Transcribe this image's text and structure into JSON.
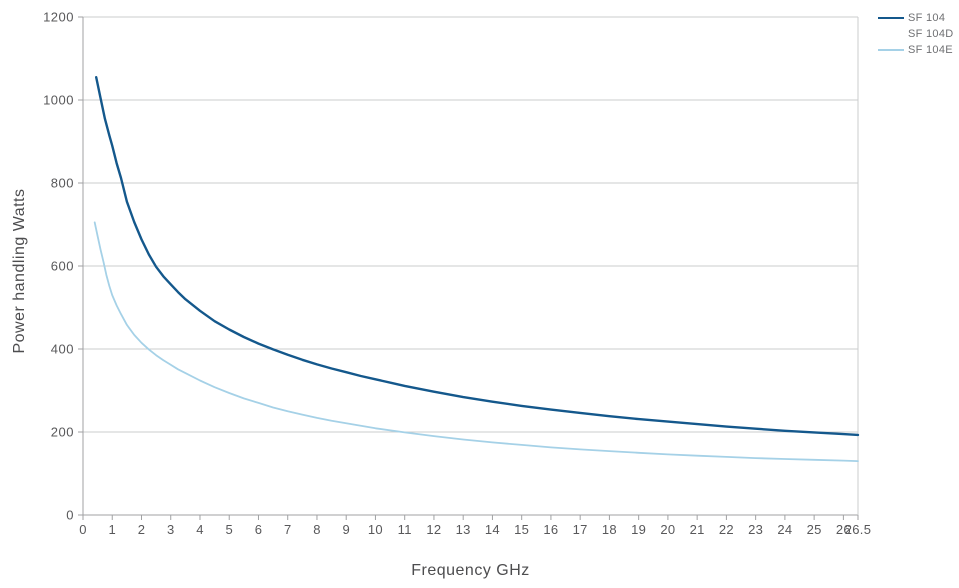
{
  "accent_colors": {
    "series_dark_blue": "#14588c",
    "series_light_blue": "#a5d1e7",
    "gridline": "#cbcccd",
    "axis_frame": "#a0a1a3",
    "tick_label": "#58585a",
    "axis_title": "#4d4d4f",
    "legend_text": "#6f7073",
    "background": "#ffffff"
  },
  "chart_data": {
    "type": "line",
    "title": "",
    "xlabel": "Frequency GHz",
    "ylabel": "Power handling Watts",
    "xlim": [
      0,
      26.5
    ],
    "ylim": [
      0,
      1200
    ],
    "x_ticks": [
      0,
      1,
      2,
      3,
      4,
      5,
      6,
      7,
      8,
      9,
      10,
      11,
      12,
      13,
      14,
      15,
      16,
      17,
      18,
      19,
      20,
      21,
      22,
      23,
      24,
      25,
      26,
      26.5
    ],
    "y_ticks": [
      0,
      200,
      400,
      600,
      800,
      1000,
      1200
    ],
    "grid": "horizontal-only",
    "legend_position": "top-right",
    "series": [
      {
        "name": "SF 104",
        "color": "#14588c",
        "stroke_width": 2.4,
        "points": [
          [
            0.45,
            1055
          ],
          [
            0.6,
            1005
          ],
          [
            0.75,
            955
          ],
          [
            0.9,
            915
          ],
          [
            1,
            890
          ],
          [
            1.15,
            848
          ],
          [
            1.3,
            812
          ],
          [
            1.5,
            755
          ],
          [
            1.75,
            706
          ],
          [
            2,
            664
          ],
          [
            2.25,
            628
          ],
          [
            2.5,
            598
          ],
          [
            2.75,
            575
          ],
          [
            3,
            556
          ],
          [
            3.25,
            537
          ],
          [
            3.5,
            520
          ],
          [
            4,
            492
          ],
          [
            4.5,
            467
          ],
          [
            5,
            447
          ],
          [
            5.5,
            429
          ],
          [
            6,
            413
          ],
          [
            6.5,
            399
          ],
          [
            7,
            386
          ],
          [
            7.5,
            374
          ],
          [
            8,
            363
          ],
          [
            8.5,
            353
          ],
          [
            9,
            344
          ],
          [
            9.5,
            335
          ],
          [
            10,
            327
          ],
          [
            11,
            311
          ],
          [
            12,
            297
          ],
          [
            13,
            284
          ],
          [
            14,
            273
          ],
          [
            15,
            263
          ],
          [
            16,
            254
          ],
          [
            17,
            246
          ],
          [
            18,
            238
          ],
          [
            19,
            231
          ],
          [
            20,
            225
          ],
          [
            21,
            219
          ],
          [
            22,
            213
          ],
          [
            23,
            208
          ],
          [
            24,
            203
          ],
          [
            25,
            199
          ],
          [
            26,
            195
          ],
          [
            26.5,
            193
          ]
        ]
      },
      {
        "name": "SF 104D",
        "color": null,
        "stroke_width": 2,
        "points": []
      },
      {
        "name": "SF 104E",
        "color": "#a5d1e7",
        "stroke_width": 1.8,
        "points": [
          [
            0.4,
            705
          ],
          [
            0.5,
            672
          ],
          [
            0.6,
            640
          ],
          [
            0.7,
            610
          ],
          [
            0.8,
            578
          ],
          [
            0.9,
            552
          ],
          [
            1,
            530
          ],
          [
            1.15,
            505
          ],
          [
            1.3,
            484
          ],
          [
            1.5,
            458
          ],
          [
            1.75,
            434
          ],
          [
            2,
            415
          ],
          [
            2.25,
            399
          ],
          [
            2.5,
            385
          ],
          [
            2.75,
            373
          ],
          [
            3,
            362
          ],
          [
            3.25,
            351
          ],
          [
            3.5,
            342
          ],
          [
            4,
            324
          ],
          [
            4.5,
            308
          ],
          [
            5,
            294
          ],
          [
            5.5,
            281
          ],
          [
            6,
            270
          ],
          [
            6.5,
            259
          ],
          [
            7,
            250
          ],
          [
            7.5,
            242
          ],
          [
            8,
            234
          ],
          [
            8.5,
            227
          ],
          [
            9,
            221
          ],
          [
            9.5,
            215
          ],
          [
            10,
            209
          ],
          [
            11,
            199
          ],
          [
            12,
            190
          ],
          [
            13,
            182
          ],
          [
            14,
            175
          ],
          [
            15,
            169
          ],
          [
            16,
            163
          ],
          [
            17,
            158
          ],
          [
            18,
            154
          ],
          [
            19,
            150
          ],
          [
            20,
            146
          ],
          [
            21,
            143
          ],
          [
            22,
            140
          ],
          [
            23,
            137
          ],
          [
            24,
            135
          ],
          [
            25,
            133
          ],
          [
            26,
            131
          ],
          [
            26.5,
            130
          ]
        ]
      }
    ]
  }
}
